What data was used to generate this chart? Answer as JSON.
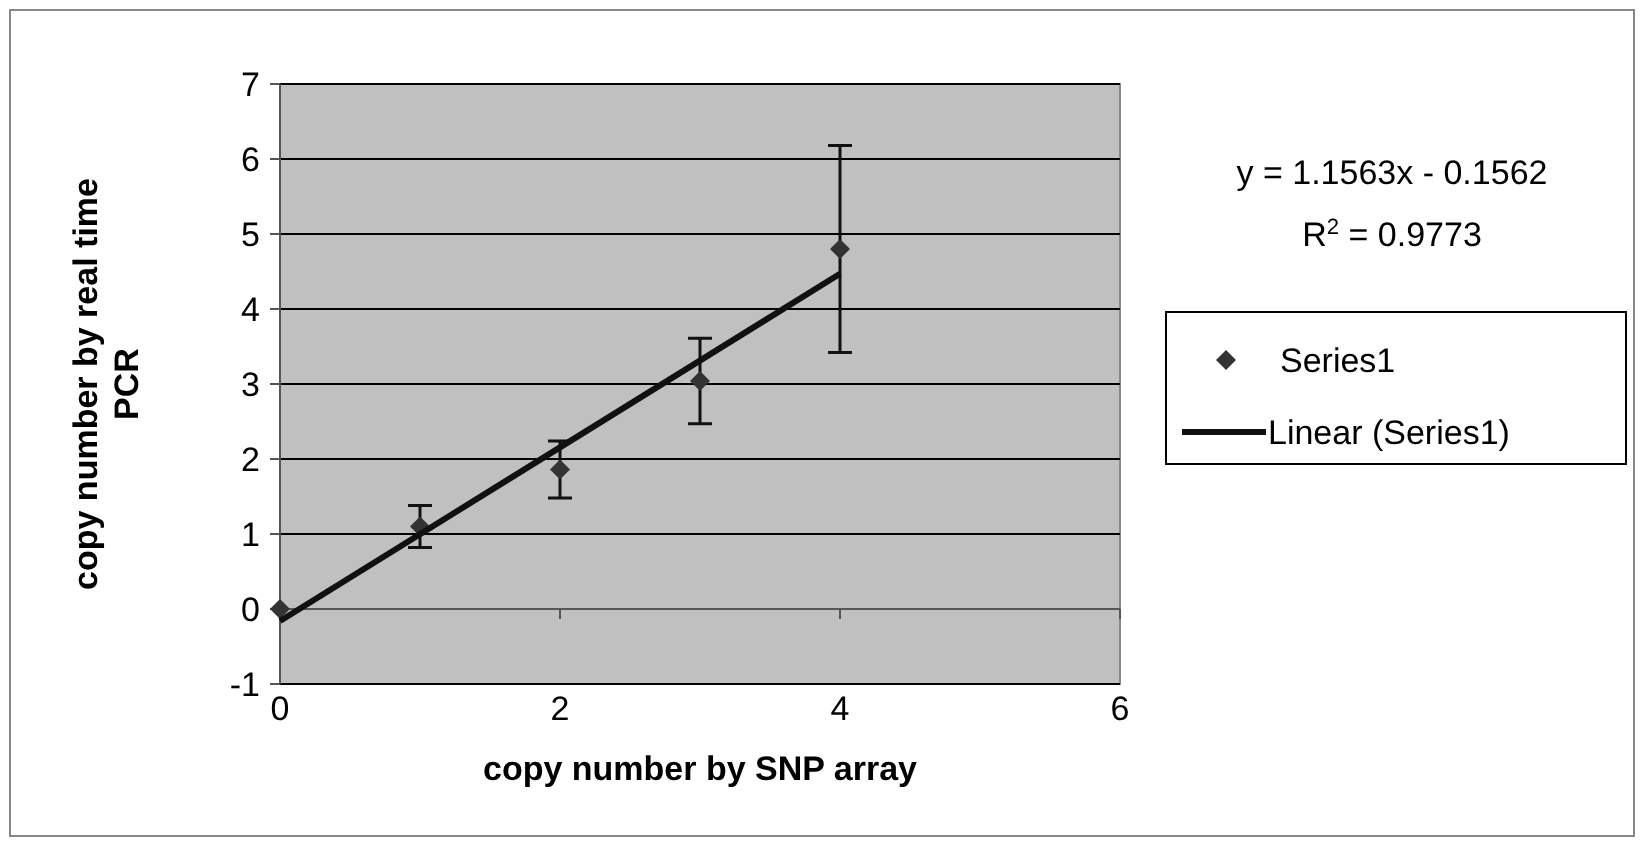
{
  "chart_data": {
    "type": "scatter",
    "xlabel": "copy number by SNP array",
    "ylabel": "copy number by real time PCR",
    "xlim": [
      0,
      6
    ],
    "xticks": [
      0,
      2,
      4,
      6
    ],
    "ylim": [
      -1,
      7
    ],
    "yticks": [
      -1,
      0,
      1,
      2,
      3,
      4,
      5,
      6,
      7
    ],
    "grid": "y",
    "legend": "right",
    "annotations": [
      "y = 1.1563x - 0.1562",
      "R$^{2}$ = 0.9773"
    ],
    "series": [
      {
        "name": "Series1",
        "marker": "diamond",
        "color": "#333333",
        "x": [
          0,
          1,
          2,
          3,
          4
        ],
        "values": [
          0,
          1.1,
          1.86,
          3.04,
          4.8
        ],
        "errors": [
          null,
          0.28,
          0.38,
          0.57,
          1.38
        ]
      },
      {
        "name": "Linear (Series1)",
        "type": "line",
        "color": "#111111",
        "x": [
          0,
          4
        ],
        "values": [
          -0.16,
          4.47
        ],
        "line_style": "solid"
      }
    ]
  }
}
